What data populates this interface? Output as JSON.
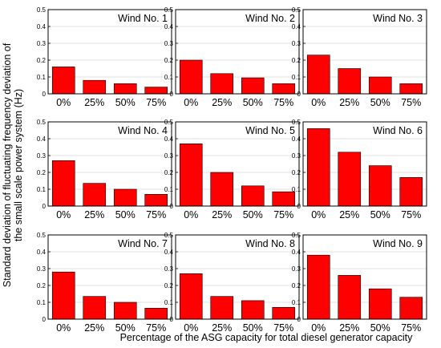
{
  "figure": {
    "ylabel_line1": "Standard deviation of fluctuating frequency deviation of",
    "ylabel_line2": "the small scale power system (Hz)",
    "xlabel": "Percentage of the ASG capacity for total diesel generator capacity"
  },
  "chart_data": [
    {
      "type": "bar",
      "title": "Wind No. 1",
      "categories": [
        "0%",
        "25%",
        "50%",
        "75%"
      ],
      "values": [
        0.16,
        0.08,
        0.06,
        0.04
      ],
      "ylim": [
        0,
        0.5
      ],
      "yticks": [
        "0",
        "0.1",
        "0.2",
        "0.3",
        "0.4",
        "0.5"
      ],
      "grid": true,
      "color": "#ff0000"
    },
    {
      "type": "bar",
      "title": "Wind No. 2",
      "categories": [
        "0%",
        "25%",
        "50%",
        "75%"
      ],
      "values": [
        0.2,
        0.12,
        0.095,
        0.06
      ],
      "ylim": [
        0,
        0.5
      ],
      "yticks": [
        "0",
        "0.1",
        "0.2",
        "0.3",
        "0.4",
        "0.5"
      ],
      "grid": true,
      "color": "#ff0000"
    },
    {
      "type": "bar",
      "title": "Wind No. 3",
      "categories": [
        "0%",
        "25%",
        "50%",
        "75%"
      ],
      "values": [
        0.23,
        0.15,
        0.1,
        0.06
      ],
      "ylim": [
        0,
        0.5
      ],
      "yticks": [
        "0",
        "0.1",
        "0.2",
        "0.3",
        "0.4",
        "0.5"
      ],
      "grid": true,
      "color": "#ff0000"
    },
    {
      "type": "bar",
      "title": "Wind No. 4",
      "categories": [
        "0%",
        "25%",
        "50%",
        "75%"
      ],
      "values": [
        0.27,
        0.135,
        0.1,
        0.07
      ],
      "ylim": [
        0,
        0.5
      ],
      "yticks": [
        "0",
        "0.1",
        "0.2",
        "0.3",
        "0.4",
        "0.5"
      ],
      "grid": true,
      "color": "#ff0000"
    },
    {
      "type": "bar",
      "title": "Wind No. 5",
      "categories": [
        "0%",
        "25%",
        "50%",
        "75%"
      ],
      "values": [
        0.37,
        0.2,
        0.12,
        0.085
      ],
      "ylim": [
        0,
        0.5
      ],
      "yticks": [
        "0",
        "0.1",
        "0.2",
        "0.3",
        "0.4",
        "0.5"
      ],
      "grid": true,
      "color": "#ff0000"
    },
    {
      "type": "bar",
      "title": "Wind No. 6",
      "categories": [
        "0%",
        "25%",
        "50%",
        "75%"
      ],
      "values": [
        0.46,
        0.32,
        0.24,
        0.17
      ],
      "ylim": [
        0,
        0.5
      ],
      "yticks": [
        "0",
        "0.1",
        "0.2",
        "0.3",
        "0.4",
        "0.5"
      ],
      "grid": true,
      "color": "#ff0000"
    },
    {
      "type": "bar",
      "title": "Wind No. 7",
      "categories": [
        "0%",
        "25%",
        "50%",
        "75%"
      ],
      "values": [
        0.28,
        0.135,
        0.1,
        0.065
      ],
      "ylim": [
        0,
        0.5
      ],
      "yticks": [
        "0",
        "0.1",
        "0.2",
        "0.3",
        "0.4",
        "0.5"
      ],
      "grid": true,
      "color": "#ff0000"
    },
    {
      "type": "bar",
      "title": "Wind No. 8",
      "categories": [
        "0%",
        "25%",
        "50%",
        "75%"
      ],
      "values": [
        0.27,
        0.135,
        0.11,
        0.07
      ],
      "ylim": [
        0,
        0.5
      ],
      "yticks": [
        "0",
        "0.1",
        "0.2",
        "0.3",
        "0.4",
        "0.5"
      ],
      "grid": true,
      "color": "#ff0000"
    },
    {
      "type": "bar",
      "title": "Wind No. 9",
      "categories": [
        "0%",
        "25%",
        "50%",
        "75%"
      ],
      "values": [
        0.38,
        0.26,
        0.18,
        0.13
      ],
      "ylim": [
        0,
        0.5
      ],
      "yticks": [
        "0",
        "0.1",
        "0.2",
        "0.3",
        "0.4",
        "0.5"
      ],
      "grid": true,
      "color": "#ff0000"
    }
  ]
}
